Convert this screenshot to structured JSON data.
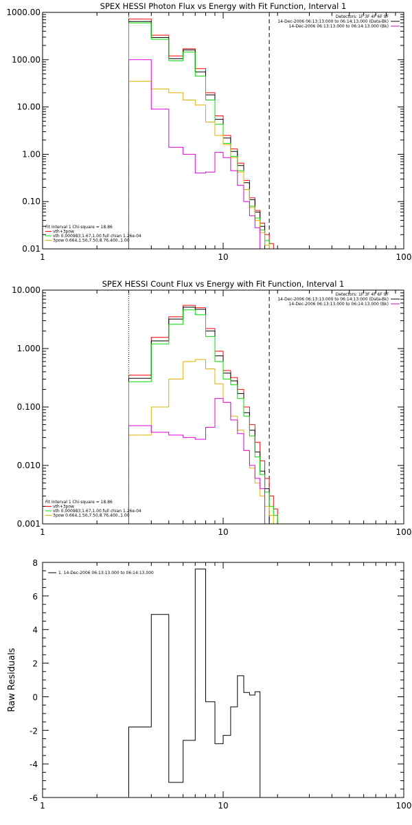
{
  "charts": [
    {
      "id": "photon",
      "title": "SPEX HESSI Photon Flux vs Energy with Fit Function, Interval 1",
      "x_ticks": [
        "1",
        "10",
        "100"
      ],
      "y_ticks": [
        "0.01",
        "0.10",
        "1.00",
        "10.00",
        "100.00",
        "1000.00"
      ],
      "legend_left": [
        "Fit Interval  1     Chi-square = 18.86",
        "vth+3pow",
        "vth 0.000983,1.67,1.00   full chian 1.26e-04",
        "3pow 0.664,1.50,7.50,8.76,400.,1.00"
      ],
      "legend_right": [
        "Detectors: 1F 3F 4F 6F 9F",
        "14-Dec-2006 06:13:13.000 to 06:14:13.000 (Data-Bk)",
        "14-Dec-2006 06:13:13.000 to 06:14:13.000 (Bk)"
      ]
    },
    {
      "id": "count",
      "title": "SPEX HESSI Count Flux vs Energy with Fit Function, Interval 1",
      "x_ticks": [
        "1",
        "10",
        "100"
      ],
      "y_ticks": [
        "0.001",
        "0.010",
        "0.100",
        "1.000",
        "10.000"
      ],
      "legend_left": [
        "Fit Interval  1     Chi-square = 18.86",
        "vth+3pow",
        "vth 0.000983,1.67,1.00   full chian 1.26e-04",
        "3pow 0.664,1.50,7.50,8.76,400.,1.00"
      ],
      "legend_right": [
        "Detectors: 1F 3F 4F 6F 9F",
        "14-Dec-2006 06:13:13.000 to 06:14:13.000 (Data-Bk)",
        "14-Dec-2006 06:13:13.000 to 06:14:13.000 (Bk)"
      ]
    },
    {
      "id": "residuals",
      "ylabel": "Raw Residuals",
      "x_ticks": [
        "1",
        "10",
        "100"
      ],
      "y_ticks": [
        "8",
        "6",
        "4",
        "2",
        "0",
        "-2",
        "-4",
        "-6"
      ],
      "legend_left": [
        "1. 14-Dec-2006 06:13:13.000 to 06:14:13.000"
      ]
    }
  ],
  "chart_data": [
    {
      "type": "line",
      "title": "SPEX HESSI Photon Flux vs Energy with Fit Function, Interval 1",
      "xlim": [
        1,
        100
      ],
      "ylim": [
        0.01,
        1000
      ],
      "xscale": "log",
      "yscale": "log",
      "step": true,
      "vlines": {
        "dotted": 3,
        "dashed": 18
      },
      "x_edges": [
        3,
        4,
        5,
        6,
        7,
        8,
        9,
        10,
        11,
        12,
        13,
        14,
        15,
        16,
        17,
        18,
        19,
        20,
        22
      ],
      "series": [
        {
          "color": "#ff0000",
          "values": [
            720,
            330,
            120,
            170,
            65,
            20,
            6.5,
            2.5,
            1.3,
            0.65,
            0.28,
            0.12,
            0.065,
            0.035,
            0.02,
            0.013,
            null,
            null
          ]
        },
        {
          "color": "#000000",
          "values": [
            640,
            295,
            105,
            160,
            55,
            18,
            5.5,
            2.2,
            1.15,
            0.58,
            0.25,
            0.11,
            0.06,
            0.03,
            null,
            null,
            null,
            null
          ]
        },
        {
          "color": "#00dd00",
          "values": [
            600,
            270,
            95,
            145,
            45,
            14,
            4.3,
            1.7,
            0.9,
            0.45,
            0.18,
            0.08,
            0.045,
            0.025,
            0.015,
            0.01,
            null,
            null
          ]
        },
        {
          "color": "#e0b000",
          "values": [
            35,
            24,
            20,
            14,
            11,
            4.8,
            2.5,
            1.6,
            0.85,
            0.42,
            0.18,
            0.075,
            0.04,
            0.022,
            0.012,
            null,
            null,
            null
          ]
        },
        {
          "color": "#dd00dd",
          "values": [
            100,
            9,
            1.4,
            1.0,
            0.4,
            0.42,
            1.1,
            0.85,
            0.45,
            0.22,
            0.1,
            0.05,
            0.028,
            null,
            null,
            null,
            null,
            null
          ]
        }
      ]
    },
    {
      "type": "line",
      "title": "SPEX HESSI Count Flux vs Energy with Fit Function, Interval 1",
      "xlim": [
        1,
        100
      ],
      "ylim": [
        0.001,
        10
      ],
      "xscale": "log",
      "yscale": "log",
      "step": true,
      "vlines": {
        "dotted": 3,
        "dashed": 18
      },
      "x_edges": [
        3,
        4,
        5,
        6,
        7,
        8,
        9,
        10,
        11,
        12,
        13,
        14,
        15,
        16,
        17,
        18,
        19,
        20,
        22
      ],
      "series": [
        {
          "color": "#ff0000",
          "values": [
            0.35,
            1.55,
            3.5,
            5.5,
            5.0,
            2.2,
            0.9,
            0.42,
            0.32,
            0.2,
            0.1,
            0.05,
            0.025,
            0.012,
            0.006,
            0.003,
            0.0018,
            null
          ]
        },
        {
          "color": "#000000",
          "values": [
            0.31,
            1.35,
            3.2,
            5.1,
            4.7,
            2.0,
            0.75,
            0.38,
            0.28,
            0.17,
            0.08,
            0.04,
            0.017,
            0.008,
            0.004,
            null,
            null,
            null
          ]
        },
        {
          "color": "#00dd00",
          "values": [
            0.27,
            1.2,
            2.6,
            4.6,
            3.8,
            1.6,
            0.6,
            0.3,
            0.24,
            0.14,
            0.07,
            0.032,
            0.014,
            0.007,
            0.0035,
            0.002,
            0.0014,
            null
          ]
        },
        {
          "color": "#e0b000",
          "values": [
            0.033,
            0.1,
            0.3,
            0.6,
            0.65,
            0.45,
            0.25,
            0.12,
            0.07,
            0.04,
            0.018,
            0.009,
            0.005,
            0.003,
            0.002,
            0.0014,
            null,
            null
          ]
        },
        {
          "color": "#dd00dd",
          "values": [
            0.048,
            0.037,
            0.033,
            0.03,
            0.028,
            0.045,
            0.14,
            0.12,
            0.06,
            0.035,
            0.018,
            0.01,
            0.006,
            0.004,
            null,
            null,
            null,
            null
          ]
        }
      ]
    },
    {
      "type": "line",
      "xlim": [
        1,
        100
      ],
      "ylim": [
        -6,
        8
      ],
      "xscale": "log",
      "step": true,
      "ylabel": "Raw Residuals",
      "x_edges": [
        3,
        4,
        5,
        6,
        7,
        8,
        9,
        10,
        11,
        12,
        13,
        14,
        15,
        16,
        17,
        18
      ],
      "series": [
        {
          "color": "#000000",
          "values": [
            -1.8,
            4.9,
            -5.1,
            -2.6,
            7.6,
            -0.3,
            -2.8,
            -2.3,
            -0.6,
            1.25,
            0.25,
            0.1,
            0.3
          ]
        }
      ]
    }
  ]
}
